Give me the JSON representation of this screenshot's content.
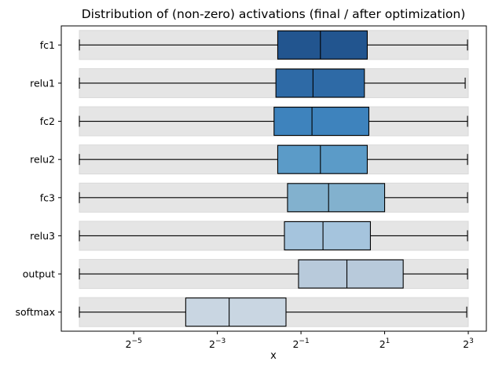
{
  "chart_data": {
    "type": "boxplot",
    "title": "Distribution of (non-zero) activations (final / after optimization)",
    "xlabel": "x",
    "ylabel": "",
    "x_scale": "log2",
    "xlim": [
      0.0127,
      8.0
    ],
    "x_ticks": [
      {
        "value": 0.03125,
        "base": "2",
        "exp": "−5"
      },
      {
        "value": 0.125,
        "base": "2",
        "exp": "−3"
      },
      {
        "value": 0.5,
        "base": "2",
        "exp": "−1"
      },
      {
        "value": 2,
        "base": "2",
        "exp": "1"
      },
      {
        "value": 8,
        "base": "2",
        "exp": "3"
      }
    ],
    "grid": false,
    "legend": "none",
    "background_band_color": "#e5e5e5",
    "layers": [
      {
        "name": "fc1",
        "whisker_low": 0.0127,
        "q1": 0.34,
        "median": 0.69,
        "q3": 1.5,
        "whisker_high": 7.9,
        "color": "#22558f"
      },
      {
        "name": "relu1",
        "whisker_low": 0.0127,
        "q1": 0.33,
        "median": 0.61,
        "q3": 1.43,
        "whisker_high": 7.6,
        "color": "#2e6aa6"
      },
      {
        "name": "fc2",
        "whisker_low": 0.0127,
        "q1": 0.32,
        "median": 0.6,
        "q3": 1.54,
        "whisker_high": 7.9,
        "color": "#3e83bd"
      },
      {
        "name": "relu2",
        "whisker_low": 0.0127,
        "q1": 0.34,
        "median": 0.69,
        "q3": 1.5,
        "whisker_high": 7.9,
        "color": "#5b9bc8"
      },
      {
        "name": "fc3",
        "whisker_low": 0.0127,
        "q1": 0.4,
        "median": 0.79,
        "q3": 2.0,
        "whisker_high": 7.9,
        "color": "#82b1ce"
      },
      {
        "name": "relu3",
        "whisker_low": 0.0127,
        "q1": 0.38,
        "median": 0.72,
        "q3": 1.58,
        "whisker_high": 7.9,
        "color": "#a5c4dd"
      },
      {
        "name": "output",
        "whisker_low": 0.0127,
        "q1": 0.48,
        "median": 1.07,
        "q3": 2.72,
        "whisker_high": 7.9,
        "color": "#b8cadb"
      },
      {
        "name": "softmax",
        "whisker_low": 0.0127,
        "q1": 0.074,
        "median": 0.152,
        "q3": 0.39,
        "whisker_high": 7.8,
        "color": "#c9d6e2"
      }
    ]
  }
}
